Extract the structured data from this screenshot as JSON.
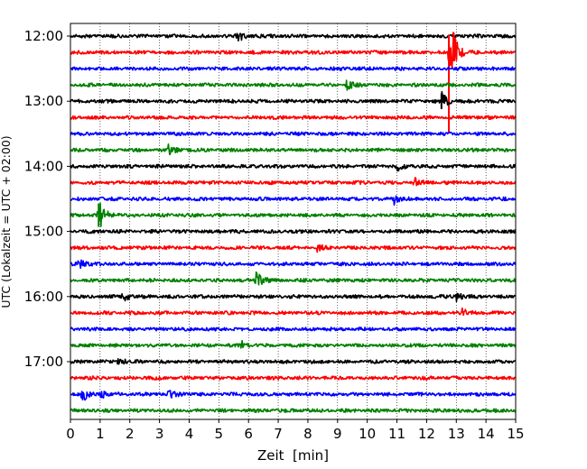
{
  "chart_data": {
    "type": "line",
    "xlabel": "Zeit  [min]",
    "ylabel": "UTC (Lokalzeit = UTC + 02:00)",
    "xlim": [
      0,
      15
    ],
    "x_ticks": [
      "0",
      "1",
      "2",
      "3",
      "4",
      "5",
      "6",
      "7",
      "8",
      "9",
      "10",
      "11",
      "12",
      "13",
      "14",
      "15"
    ],
    "y_ticks": [
      "12:00",
      "13:00",
      "14:00",
      "15:00",
      "16:00",
      "17:00"
    ],
    "grid": "vertical dotted",
    "trace_colors": [
      "#000000",
      "#ff0000",
      "#0000ff",
      "#008000"
    ],
    "traces": [
      {
        "start": "12:00",
        "color": "#000000",
        "events": [
          {
            "t": 5.6,
            "amp": 0.5
          }
        ]
      },
      {
        "start": "12:15",
        "color": "#ff0000",
        "events": [
          {
            "t": 12.75,
            "amp": 1.6
          },
          {
            "t": 12.9,
            "amp": 0.9
          }
        ]
      },
      {
        "start": "12:30",
        "color": "#0000ff",
        "events": []
      },
      {
        "start": "12:45",
        "color": "#008000",
        "events": [
          {
            "t": 9.3,
            "amp": 0.5
          }
        ]
      },
      {
        "start": "13:00",
        "color": "#000000",
        "events": [
          {
            "t": 12.5,
            "amp": 0.8
          }
        ]
      },
      {
        "start": "13:15",
        "color": "#ff0000",
        "events": []
      },
      {
        "start": "13:30",
        "color": "#0000ff",
        "events": []
      },
      {
        "start": "13:45",
        "color": "#008000",
        "events": [
          {
            "t": 3.3,
            "amp": 0.35
          }
        ]
      },
      {
        "start": "14:00",
        "color": "#000000",
        "events": [
          {
            "t": 11.0,
            "amp": 0.3
          }
        ]
      },
      {
        "start": "14:15",
        "color": "#ff0000",
        "events": [
          {
            "t": 11.6,
            "amp": 0.35
          }
        ]
      },
      {
        "start": "14:30",
        "color": "#0000ff",
        "events": [
          {
            "t": 10.9,
            "amp": 0.45
          }
        ]
      },
      {
        "start": "14:45",
        "color": "#008000",
        "events": [
          {
            "t": 0.95,
            "amp": 1.2
          }
        ]
      },
      {
        "start": "15:00",
        "color": "#000000",
        "events": []
      },
      {
        "start": "15:15",
        "color": "#ff0000",
        "events": [
          {
            "t": 8.3,
            "amp": 0.25
          }
        ]
      },
      {
        "start": "15:30",
        "color": "#0000ff",
        "events": [
          {
            "t": 0.3,
            "amp": 0.45
          }
        ]
      },
      {
        "start": "15:45",
        "color": "#008000",
        "events": [
          {
            "t": 6.25,
            "amp": 0.7
          }
        ]
      },
      {
        "start": "16:00",
        "color": "#000000",
        "events": [
          {
            "t": 1.75,
            "amp": 0.45
          },
          {
            "t": 13.0,
            "amp": 0.3
          }
        ]
      },
      {
        "start": "16:15",
        "color": "#ff0000",
        "events": [
          {
            "t": 13.2,
            "amp": 0.25
          }
        ]
      },
      {
        "start": "16:30",
        "color": "#0000ff",
        "events": []
      },
      {
        "start": "16:45",
        "color": "#008000",
        "events": [
          {
            "t": 5.75,
            "amp": 0.3
          }
        ]
      },
      {
        "start": "17:00",
        "color": "#000000",
        "events": [
          {
            "t": 1.6,
            "amp": 0.3
          }
        ]
      },
      {
        "start": "17:15",
        "color": "#ff0000",
        "events": []
      },
      {
        "start": "17:30",
        "color": "#0000ff",
        "events": [
          {
            "t": 0.4,
            "amp": 0.55
          },
          {
            "t": 1.0,
            "amp": 0.35
          },
          {
            "t": 3.3,
            "amp": 0.3
          }
        ]
      },
      {
        "start": "17:45",
        "color": "#008000",
        "events": []
      }
    ]
  }
}
